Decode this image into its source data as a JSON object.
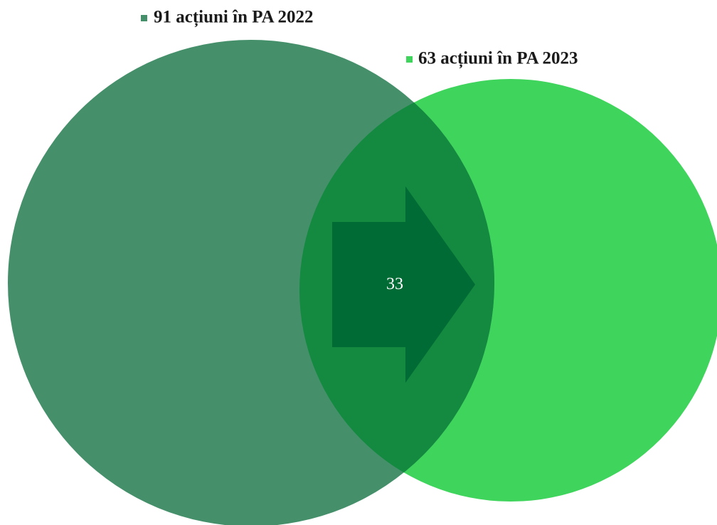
{
  "sets": [
    {
      "label": "91 acțiuni în PA 2022"
    },
    {
      "label": "63 acțiuni în PA 2023"
    }
  ],
  "overlap": {
    "label": "33"
  }
}
